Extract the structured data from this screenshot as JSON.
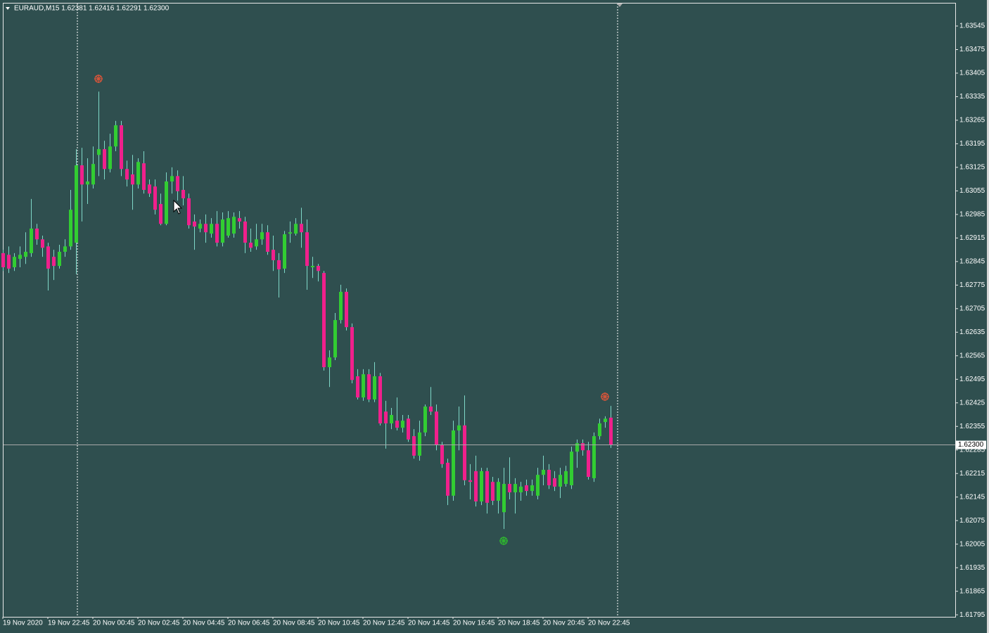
{
  "chart_data": {
    "type": "candlestick",
    "header": "EURAUD,M15  1.62381 1.62416 1.62291 1.62300",
    "categories": [
      "19 Nov 2020",
      null,
      null,
      null,
      null,
      null,
      null,
      null,
      "19 Nov 22:45",
      null,
      null,
      null,
      null,
      null,
      null,
      null,
      "20 Nov 00:45",
      null,
      null,
      null,
      null,
      null,
      null,
      null,
      "20 Nov 02:45",
      null,
      null,
      null,
      null,
      null,
      null,
      null,
      "20 Nov 04:45",
      null,
      null,
      null,
      null,
      null,
      null,
      null,
      "20 Nov 06:45",
      null,
      null,
      null,
      null,
      null,
      null,
      null,
      "20 Nov 08:45",
      null,
      null,
      null,
      null,
      null,
      null,
      null,
      "20 Nov 10:45",
      null,
      null,
      null,
      null,
      null,
      null,
      null,
      "20 Nov 12:45",
      null,
      null,
      null,
      null,
      null,
      null,
      null,
      "20 Nov 14:45",
      null,
      null,
      null,
      null,
      null,
      null,
      null,
      "20 Nov 16:45",
      null,
      null,
      null,
      null,
      null,
      null,
      null,
      "20 Nov 18:45",
      null,
      null,
      null,
      null,
      null,
      null,
      null,
      "20 Nov 20:45",
      null,
      null,
      null,
      null,
      null,
      null,
      null,
      "20 Nov 22:45",
      null,
      null,
      null,
      null
    ],
    "open": [
      1.6287,
      1.62865,
      1.62828,
      1.62853,
      1.62859,
      1.6287,
      1.62943,
      1.62911,
      1.6289,
      1.62859,
      1.62832,
      1.62874,
      1.6289,
      1.62901,
      1.63131,
      1.63074,
      1.63074,
      1.63162,
      1.63179,
      1.6312,
      1.63187,
      1.6325,
      1.6312,
      1.63104,
      1.63074,
      1.63137,
      1.63074,
      1.63068,
      1.63016,
      1.62957,
      1.63083,
      1.63099,
      1.63058,
      1.63033,
      1.62964,
      1.62943,
      1.62957,
      1.62928,
      1.62957,
      1.62901,
      1.62922,
      1.62928,
      1.62974,
      1.62964,
      1.62901,
      1.6289,
      1.62911,
      1.62932,
      1.6288,
      1.62849,
      1.62824,
      1.62928,
      1.62928,
      1.62957,
      1.62932,
      1.62828,
      1.62832,
      1.62811,
      1.62531,
      1.6256,
      1.62671,
      1.62755,
      1.6265,
      1.62504,
      1.62441,
      1.6251,
      1.62435,
      1.62504,
      1.62399,
      1.62364,
      1.62372,
      1.62351,
      1.62378,
      1.62326,
      1.62268,
      1.62337,
      1.62414,
      1.62399,
      1.62301,
      1.62247,
      1.62149,
      1.62343,
      1.62358,
      1.62195,
      1.62222,
      1.62132,
      1.62222,
      1.6219,
      1.62134,
      1.621,
      1.62184,
      1.62159,
      1.62159,
      1.6218,
      1.62163,
      1.62149,
      1.62211,
      1.62226,
      1.62201,
      1.62176,
      1.62184,
      1.6218,
      1.6228,
      1.62305,
      1.62284,
      1.62201,
      1.62326,
      1.62368,
      1.62381
    ],
    "high": [
      1.6288,
      1.6289,
      1.6287,
      1.6289,
      1.62932,
      1.63031,
      1.62957,
      1.62922,
      1.62901,
      1.6288,
      1.62895,
      1.62911,
      1.63058,
      1.63179,
      1.63183,
      1.63152,
      1.63187,
      1.6335,
      1.63204,
      1.63225,
      1.63263,
      1.63263,
      1.63145,
      1.63162,
      1.63152,
      1.63173,
      1.63089,
      1.63089,
      1.63047,
      1.6311,
      1.63125,
      1.63116,
      1.63099,
      1.63047,
      1.62985,
      1.6297,
      1.62985,
      1.62974,
      1.62995,
      1.62991,
      1.62995,
      1.62991,
      1.62995,
      1.62978,
      1.62943,
      1.62957,
      1.62957,
      1.62953,
      1.62922,
      1.6287,
      1.62936,
      1.62964,
      1.62974,
      1.63005,
      1.6297,
      1.62859,
      1.62838,
      1.62817,
      1.62581,
      1.62692,
      1.62776,
      1.62765,
      1.62661,
      1.62525,
      1.62525,
      1.62525,
      1.62546,
      1.62514,
      1.62431,
      1.6241,
      1.62441,
      1.62389,
      1.62389,
      1.62347,
      1.62372,
      1.6242,
      1.62472,
      1.6242,
      1.62309,
      1.62259,
      1.62372,
      1.62414,
      1.62447,
      1.62243,
      1.62268,
      1.62232,
      1.62232,
      1.62205,
      1.62201,
      1.62232,
      1.62263,
      1.62201,
      1.6219,
      1.62197,
      1.62197,
      1.62232,
      1.62268,
      1.62243,
      1.62222,
      1.62232,
      1.62238,
      1.62295,
      1.62316,
      1.62316,
      1.62309,
      1.62337,
      1.62378,
      1.62385,
      1.62416
    ],
    "low": [
      1.62817,
      1.62811,
      1.62817,
      1.62828,
      1.62838,
      1.62859,
      1.62895,
      1.62859,
      1.62759,
      1.6279,
      1.62824,
      1.62859,
      1.6288,
      1.62807,
      1.62964,
      1.63016,
      1.63062,
      1.63099,
      1.63089,
      1.6311,
      1.63173,
      1.63099,
      1.63068,
      1.62999,
      1.63062,
      1.63047,
      1.63037,
      1.62985,
      1.62953,
      1.62953,
      1.63047,
      1.63026,
      1.63012,
      1.62943,
      1.6288,
      1.62932,
      1.62901,
      1.62916,
      1.6289,
      1.6289,
      1.62916,
      1.62916,
      1.62943,
      1.6287,
      1.62874,
      1.6288,
      1.62895,
      1.62865,
      1.62817,
      1.62738,
      1.62811,
      1.62901,
      1.62922,
      1.62886,
      1.62761,
      1.62796,
      1.62786,
      1.62521,
      1.62472,
      1.62552,
      1.62661,
      1.6264,
      1.62483,
      1.62435,
      1.62431,
      1.62427,
      1.62427,
      1.62358,
      1.62289,
      1.62347,
      1.62343,
      1.62337,
      1.62309,
      1.62259,
      1.62253,
      1.62326,
      1.62389,
      1.62284,
      1.62232,
      1.62121,
      1.62134,
      1.62284,
      1.6218,
      1.62138,
      1.62117,
      1.62121,
      1.62096,
      1.62121,
      1.62096,
      1.6205,
      1.62138,
      1.62096,
      1.62134,
      1.62149,
      1.62149,
      1.62138,
      1.6218,
      1.62169,
      1.62163,
      1.62142,
      1.62176,
      1.62169,
      1.62232,
      1.62268,
      1.62197,
      1.6219,
      1.62316,
      1.62351,
      1.62291
    ],
    "close": [
      1.62828,
      1.62824,
      1.62859,
      1.62865,
      1.62874,
      1.62943,
      1.62911,
      1.62886,
      1.62824,
      1.62832,
      1.62874,
      1.6289,
      1.62999,
      1.63131,
      1.63074,
      1.63083,
      1.63135,
      1.63179,
      1.6312,
      1.63187,
      1.6325,
      1.6312,
      1.63089,
      1.63074,
      1.63141,
      1.63058,
      1.63047,
      1.62999,
      1.62957,
      1.63083,
      1.63099,
      1.63054,
      1.63033,
      1.62953,
      1.62949,
      1.62957,
      1.62932,
      1.62957,
      1.62901,
      1.6297,
      1.62974,
      1.62978,
      1.62964,
      1.62901,
      1.62886,
      1.62911,
      1.62932,
      1.62874,
      1.62849,
      1.62822,
      1.62926,
      1.62932,
      1.62957,
      1.62932,
      1.62832,
      1.62832,
      1.62817,
      1.62531,
      1.6256,
      1.62671,
      1.62755,
      1.6265,
      1.62493,
      1.62441,
      1.6251,
      1.62435,
      1.62504,
      1.62364,
      1.62364,
      1.62389,
      1.62351,
      1.62372,
      1.62316,
      1.62268,
      1.62337,
      1.62414,
      1.62399,
      1.62301,
      1.62243,
      1.62149,
      1.62343,
      1.62358,
      1.62195,
      1.6219,
      1.62132,
      1.62222,
      1.62128,
      1.62134,
      1.6219,
      1.62184,
      1.62159,
      1.62184,
      1.62176,
      1.62163,
      1.6218,
      1.62211,
      1.62226,
      1.6218,
      1.62176,
      1.62211,
      1.62222,
      1.6228,
      1.62305,
      1.62284,
      1.62205,
      1.62326,
      1.62364,
      1.62378,
      1.623
    ],
    "up_color": "#32cd32",
    "down_color": "#f0208c",
    "wick_color": "#7fd8c8",
    "ylim": [
      1.61789,
      1.63614
    ],
    "yticks": [
      1.63545,
      1.63475,
      1.63405,
      1.63335,
      1.63265,
      1.63195,
      1.63125,
      1.63055,
      1.62985,
      1.62915,
      1.62845,
      1.62775,
      1.62705,
      1.62635,
      1.62565,
      1.62495,
      1.62425,
      1.62355,
      1.62285,
      1.62215,
      1.62145,
      1.62075,
      1.62005,
      1.61935,
      1.61865,
      1.61795
    ],
    "price_line": {
      "value": 1.623,
      "label": "1.62300"
    }
  }
}
